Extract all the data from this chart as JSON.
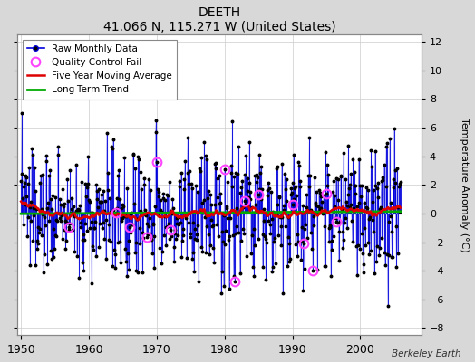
{
  "title": "DEETH",
  "subtitle": "41.066 N, 115.271 W (United States)",
  "credit": "Berkeley Earth",
  "ylabel": "Temperature Anomaly (°C)",
  "xlim": [
    1949.5,
    2009
  ],
  "ylim": [
    -8.5,
    12.5
  ],
  "yticks": [
    -8,
    -6,
    -4,
    -2,
    0,
    2,
    4,
    6,
    8,
    10,
    12
  ],
  "xticks": [
    1950,
    1960,
    1970,
    1980,
    1990,
    2000
  ],
  "bg_color": "#d8d8d8",
  "plot_bg": "#ffffff",
  "raw_color": "#0000dd",
  "dot_color": "#000000",
  "ma_color": "#dd0000",
  "trend_color": "#00aa00",
  "qc_color": "#ff44ff",
  "seed": 137,
  "n_months": 672,
  "start_year": 1950,
  "qc_fail_indices": [
    84,
    168,
    192,
    222,
    240,
    264,
    360,
    378,
    396,
    420,
    480,
    500,
    516,
    540,
    558
  ]
}
